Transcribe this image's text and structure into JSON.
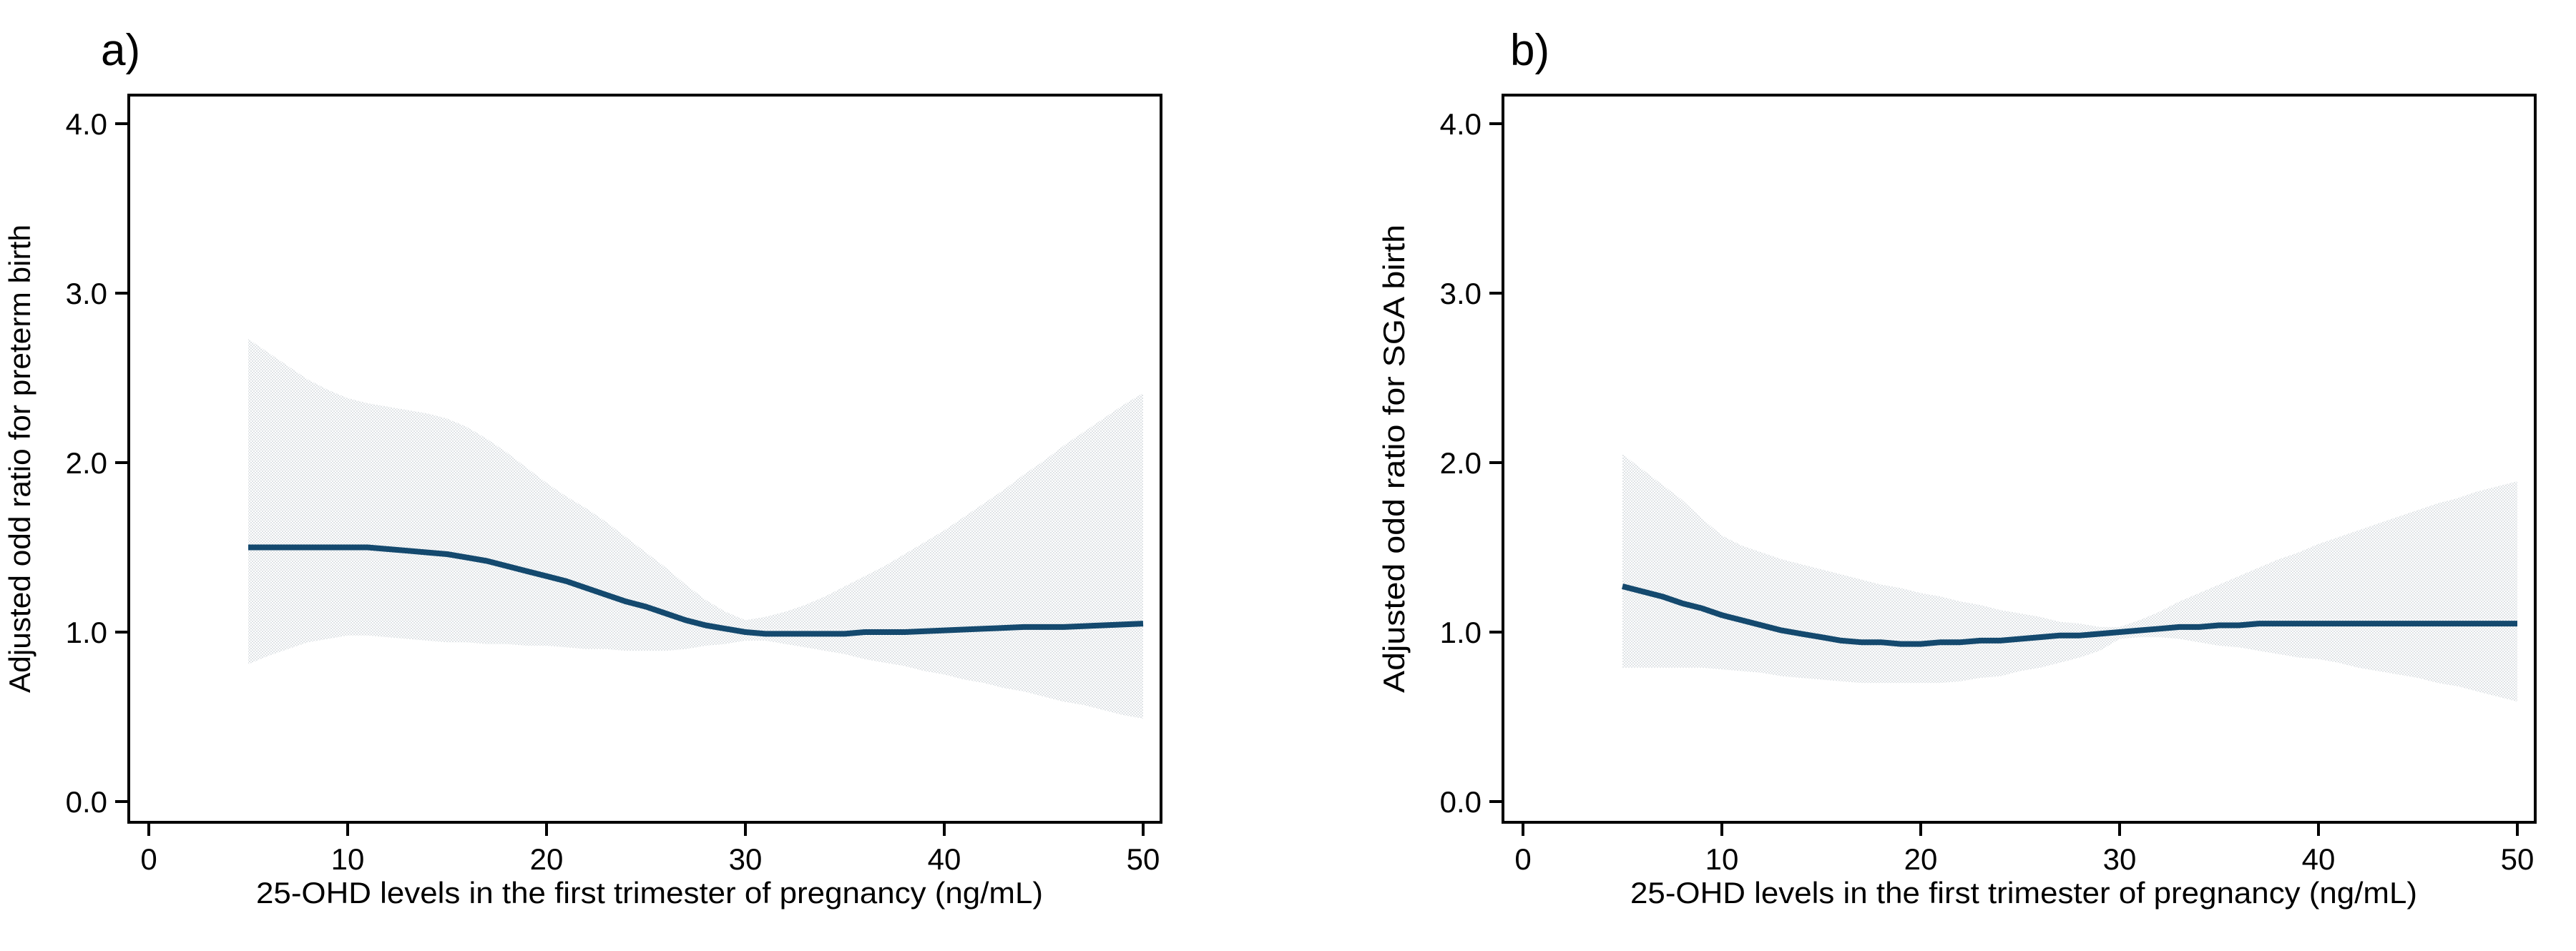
{
  "chart_data": [
    {
      "type": "line",
      "panel_label": "a)",
      "xlabel": "25-OHD levels in the first trimester of pregnancy (ng/mL)",
      "ylabel": "Adjusted odd ratio for preterm birth",
      "xticks": [
        0,
        10,
        20,
        30,
        40,
        50
      ],
      "ytick_labels": [
        "0.0",
        "1.0",
        "2.0",
        "3.0",
        "4.0"
      ],
      "ytick_values": [
        0,
        1,
        2,
        3,
        4
      ],
      "xlim": [
        -1,
        51
      ],
      "ylim": [
        -0.12,
        4.17
      ],
      "grid": false,
      "legend_position": "none",
      "reference_value_at_x30": 1.0,
      "series": [
        {
          "name": "adjusted-odds-ratio-spline",
          "role": "line",
          "points": [
            [
              5,
              1.5
            ],
            [
              7,
              1.5
            ],
            [
              9,
              1.5
            ],
            [
              11,
              1.5
            ],
            [
              12,
              1.49
            ],
            [
              13,
              1.48
            ],
            [
              14,
              1.47
            ],
            [
              15,
              1.46
            ],
            [
              16,
              1.44
            ],
            [
              17,
              1.42
            ],
            [
              18,
              1.39
            ],
            [
              19,
              1.36
            ],
            [
              20,
              1.33
            ],
            [
              21,
              1.3
            ],
            [
              22,
              1.26
            ],
            [
              23,
              1.22
            ],
            [
              24,
              1.18
            ],
            [
              25,
              1.15
            ],
            [
              26,
              1.11
            ],
            [
              27,
              1.07
            ],
            [
              28,
              1.04
            ],
            [
              29,
              1.02
            ],
            [
              30,
              1.0
            ],
            [
              31,
              0.99
            ],
            [
              32,
              0.99
            ],
            [
              33,
              0.99
            ],
            [
              34,
              0.99
            ],
            [
              35,
              0.99
            ],
            [
              36,
              1.0
            ],
            [
              37,
              1.0
            ],
            [
              38,
              1.0
            ],
            [
              40,
              1.01
            ],
            [
              42,
              1.02
            ],
            [
              44,
              1.03
            ],
            [
              46,
              1.03
            ],
            [
              48,
              1.04
            ],
            [
              50,
              1.05
            ]
          ]
        },
        {
          "name": "ci-upper-95",
          "role": "band-upper",
          "points": [
            [
              5,
              2.73
            ],
            [
              6,
              2.65
            ],
            [
              7,
              2.57
            ],
            [
              8,
              2.49
            ],
            [
              9,
              2.43
            ],
            [
              10,
              2.38
            ],
            [
              11,
              2.35
            ],
            [
              12,
              2.33
            ],
            [
              13,
              2.31
            ],
            [
              14,
              2.29
            ],
            [
              15,
              2.26
            ],
            [
              16,
              2.21
            ],
            [
              17,
              2.14
            ],
            [
              18,
              2.06
            ],
            [
              19,
              1.97
            ],
            [
              20,
              1.88
            ],
            [
              21,
              1.8
            ],
            [
              22,
              1.73
            ],
            [
              23,
              1.65
            ],
            [
              24,
              1.56
            ],
            [
              25,
              1.47
            ],
            [
              26,
              1.38
            ],
            [
              27,
              1.28
            ],
            [
              28,
              1.19
            ],
            [
              29,
              1.12
            ],
            [
              30,
              1.07
            ],
            [
              31,
              1.09
            ],
            [
              32,
              1.12
            ],
            [
              33,
              1.16
            ],
            [
              34,
              1.21
            ],
            [
              35,
              1.27
            ],
            [
              36,
              1.33
            ],
            [
              37,
              1.39
            ],
            [
              38,
              1.46
            ],
            [
              39,
              1.53
            ],
            [
              40,
              1.6
            ],
            [
              41,
              1.68
            ],
            [
              42,
              1.76
            ],
            [
              43,
              1.84
            ],
            [
              44,
              1.93
            ],
            [
              45,
              2.01
            ],
            [
              46,
              2.1
            ],
            [
              47,
              2.18
            ],
            [
              48,
              2.26
            ],
            [
              49,
              2.34
            ],
            [
              50,
              2.41
            ]
          ]
        },
        {
          "name": "ci-lower-95",
          "role": "band-lower",
          "points": [
            [
              5,
              0.81
            ],
            [
              6,
              0.86
            ],
            [
              7,
              0.9
            ],
            [
              8,
              0.94
            ],
            [
              9,
              0.96
            ],
            [
              10,
              0.98
            ],
            [
              11,
              0.98
            ],
            [
              12,
              0.97
            ],
            [
              13,
              0.96
            ],
            [
              14,
              0.95
            ],
            [
              15,
              0.94
            ],
            [
              16,
              0.94
            ],
            [
              17,
              0.93
            ],
            [
              18,
              0.93
            ],
            [
              19,
              0.92
            ],
            [
              20,
              0.92
            ],
            [
              21,
              0.91
            ],
            [
              22,
              0.9
            ],
            [
              23,
              0.9
            ],
            [
              24,
              0.89
            ],
            [
              25,
              0.89
            ],
            [
              26,
              0.89
            ],
            [
              27,
              0.9
            ],
            [
              28,
              0.92
            ],
            [
              29,
              0.93
            ],
            [
              30,
              0.95
            ],
            [
              31,
              0.95
            ],
            [
              32,
              0.93
            ],
            [
              33,
              0.91
            ],
            [
              34,
              0.89
            ],
            [
              35,
              0.87
            ],
            [
              36,
              0.84
            ],
            [
              37,
              0.82
            ],
            [
              38,
              0.8
            ],
            [
              39,
              0.77
            ],
            [
              40,
              0.75
            ],
            [
              41,
              0.72
            ],
            [
              42,
              0.7
            ],
            [
              43,
              0.67
            ],
            [
              44,
              0.65
            ],
            [
              45,
              0.62
            ],
            [
              46,
              0.59
            ],
            [
              47,
              0.57
            ],
            [
              48,
              0.54
            ],
            [
              49,
              0.51
            ],
            [
              50,
              0.49
            ]
          ]
        }
      ]
    },
    {
      "type": "line",
      "panel_label": "b)",
      "xlabel": "25-OHD levels in the first trimester of pregnancy (ng/mL)",
      "ylabel": "Adjusted odd ratio for SGA birth",
      "xticks": [
        0,
        10,
        20,
        30,
        40,
        50
      ],
      "ytick_labels": [
        "0.0",
        "1.0",
        "2.0",
        "3.0",
        "4.0"
      ],
      "ytick_values": [
        0,
        1,
        2,
        3,
        4
      ],
      "xlim": [
        -1,
        51
      ],
      "ylim": [
        -0.12,
        4.17
      ],
      "grid": false,
      "legend_position": "none",
      "reference_value_at_x30": 1.0,
      "series": [
        {
          "name": "adjusted-odds-ratio-spline",
          "role": "line",
          "points": [
            [
              5,
              1.27
            ],
            [
              6,
              1.24
            ],
            [
              7,
              1.21
            ],
            [
              8,
              1.17
            ],
            [
              9,
              1.14
            ],
            [
              10,
              1.1
            ],
            [
              11,
              1.07
            ],
            [
              12,
              1.04
            ],
            [
              13,
              1.01
            ],
            [
              14,
              0.99
            ],
            [
              15,
              0.97
            ],
            [
              16,
              0.95
            ],
            [
              17,
              0.94
            ],
            [
              18,
              0.94
            ],
            [
              19,
              0.93
            ],
            [
              20,
              0.93
            ],
            [
              21,
              0.94
            ],
            [
              22,
              0.94
            ],
            [
              23,
              0.95
            ],
            [
              24,
              0.95
            ],
            [
              25,
              0.96
            ],
            [
              26,
              0.97
            ],
            [
              27,
              0.98
            ],
            [
              28,
              0.98
            ],
            [
              29,
              0.99
            ],
            [
              30,
              1.0
            ],
            [
              31,
              1.01
            ],
            [
              32,
              1.02
            ],
            [
              33,
              1.03
            ],
            [
              34,
              1.03
            ],
            [
              35,
              1.04
            ],
            [
              36,
              1.04
            ],
            [
              37,
              1.05
            ],
            [
              38,
              1.05
            ],
            [
              40,
              1.05
            ],
            [
              42,
              1.05
            ],
            [
              44,
              1.05
            ],
            [
              46,
              1.05
            ],
            [
              48,
              1.05
            ],
            [
              50,
              1.05
            ]
          ]
        },
        {
          "name": "ci-upper-95",
          "role": "band-upper",
          "points": [
            [
              5,
              2.05
            ],
            [
              6,
              1.96
            ],
            [
              7,
              1.87
            ],
            [
              8,
              1.78
            ],
            [
              9,
              1.67
            ],
            [
              10,
              1.57
            ],
            [
              11,
              1.51
            ],
            [
              12,
              1.47
            ],
            [
              13,
              1.43
            ],
            [
              14,
              1.4
            ],
            [
              15,
              1.37
            ],
            [
              16,
              1.34
            ],
            [
              17,
              1.31
            ],
            [
              18,
              1.28
            ],
            [
              19,
              1.26
            ],
            [
              20,
              1.23
            ],
            [
              21,
              1.21
            ],
            [
              22,
              1.18
            ],
            [
              23,
              1.16
            ],
            [
              24,
              1.13
            ],
            [
              25,
              1.11
            ],
            [
              26,
              1.09
            ],
            [
              27,
              1.06
            ],
            [
              28,
              1.05
            ],
            [
              29,
              1.03
            ],
            [
              30,
              1.03
            ],
            [
              31,
              1.07
            ],
            [
              32,
              1.12
            ],
            [
              33,
              1.18
            ],
            [
              34,
              1.23
            ],
            [
              35,
              1.28
            ],
            [
              36,
              1.33
            ],
            [
              37,
              1.38
            ],
            [
              38,
              1.43
            ],
            [
              39,
              1.47
            ],
            [
              40,
              1.52
            ],
            [
              41,
              1.56
            ],
            [
              42,
              1.6
            ],
            [
              43,
              1.64
            ],
            [
              44,
              1.68
            ],
            [
              45,
              1.72
            ],
            [
              46,
              1.76
            ],
            [
              47,
              1.79
            ],
            [
              48,
              1.83
            ],
            [
              49,
              1.86
            ],
            [
              50,
              1.89
            ]
          ]
        },
        {
          "name": "ci-lower-95",
          "role": "band-lower",
          "points": [
            [
              5,
              0.79
            ],
            [
              6,
              0.79
            ],
            [
              7,
              0.79
            ],
            [
              8,
              0.79
            ],
            [
              9,
              0.79
            ],
            [
              10,
              0.78
            ],
            [
              11,
              0.77
            ],
            [
              12,
              0.76
            ],
            [
              13,
              0.74
            ],
            [
              14,
              0.73
            ],
            [
              15,
              0.72
            ],
            [
              16,
              0.71
            ],
            [
              17,
              0.7
            ],
            [
              18,
              0.7
            ],
            [
              19,
              0.7
            ],
            [
              20,
              0.7
            ],
            [
              21,
              0.7
            ],
            [
              22,
              0.71
            ],
            [
              23,
              0.73
            ],
            [
              24,
              0.74
            ],
            [
              25,
              0.77
            ],
            [
              26,
              0.79
            ],
            [
              27,
              0.82
            ],
            [
              28,
              0.85
            ],
            [
              29,
              0.89
            ],
            [
              30,
              0.96
            ],
            [
              31,
              0.97
            ],
            [
              32,
              0.97
            ],
            [
              33,
              0.96
            ],
            [
              34,
              0.94
            ],
            [
              35,
              0.92
            ],
            [
              36,
              0.91
            ],
            [
              37,
              0.89
            ],
            [
              38,
              0.87
            ],
            [
              39,
              0.85
            ],
            [
              40,
              0.84
            ],
            [
              41,
              0.82
            ],
            [
              42,
              0.79
            ],
            [
              43,
              0.77
            ],
            [
              44,
              0.75
            ],
            [
              45,
              0.73
            ],
            [
              46,
              0.7
            ],
            [
              47,
              0.68
            ],
            [
              48,
              0.65
            ],
            [
              49,
              0.62
            ],
            [
              50,
              0.59
            ]
          ]
        }
      ]
    }
  ],
  "colors": {
    "line": "#14496e",
    "ci_fill_dark": "#dfe3e6",
    "ci_fill_light": "#ffffff",
    "frame": "#000000",
    "text": "#000000",
    "background": "#ffffff"
  }
}
